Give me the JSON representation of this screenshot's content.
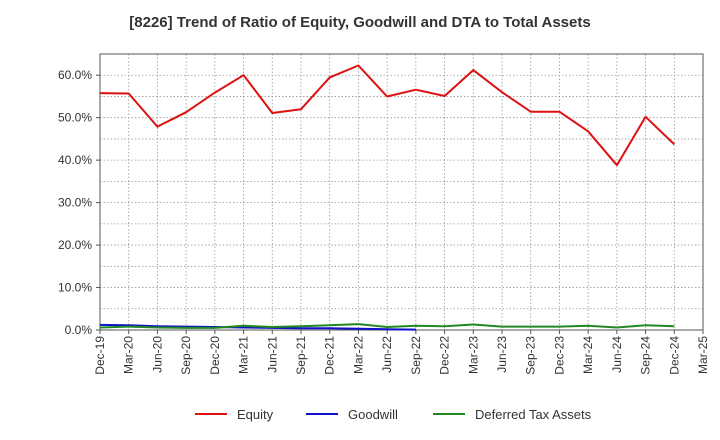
{
  "chart_data": {
    "type": "line",
    "title": "[8226]  Trend of Ratio of Equity, Goodwill and DTA to Total Assets",
    "xlabel": "",
    "ylabel": "",
    "ylim": [
      0,
      65
    ],
    "y_ticks": [
      0,
      10,
      20,
      30,
      40,
      50,
      60
    ],
    "y_tick_labels": [
      "0.0%",
      "10.0%",
      "20.0%",
      "30.0%",
      "40.0%",
      "50.0%",
      "60.0%"
    ],
    "x_tick_labels": [
      "Dec-19",
      "Mar-20",
      "Jun-20",
      "Sep-20",
      "Dec-20",
      "Mar-21",
      "Jun-21",
      "Sep-21",
      "Dec-21",
      "Mar-22",
      "Jun-22",
      "Sep-22",
      "Dec-22",
      "Mar-23",
      "Jun-23",
      "Sep-23",
      "Dec-23",
      "Mar-24",
      "Jun-24",
      "Sep-24",
      "Dec-24",
      "Mar-25"
    ],
    "grid": true,
    "legend_position": "bottom",
    "series": [
      {
        "name": "Equity",
        "color": "#dd1111",
        "values": [
          55.8,
          55.7,
          47.9,
          51.3,
          55.9,
          60.0,
          51.1,
          52.0,
          59.5,
          62.3,
          55.0,
          56.6,
          55.1,
          61.2,
          56.0,
          51.4,
          51.4,
          46.8,
          38.8,
          50.2,
          43.7
        ]
      },
      {
        "name": "Goodwill",
        "color": "#1111cc",
        "values": [
          1.2,
          1.1,
          0.9,
          0.8,
          0.7,
          0.6,
          0.5,
          0.4,
          0.4,
          0.3,
          0.2,
          0.1
        ]
      },
      {
        "name": "Deferred Tax Assets",
        "color": "#228822",
        "values": [
          0.6,
          0.8,
          0.6,
          0.5,
          0.5,
          1.0,
          0.7,
          0.9,
          1.1,
          1.4,
          0.7,
          1.0,
          0.9,
          1.3,
          0.8,
          0.8,
          0.8,
          1.0,
          0.6,
          1.1,
          0.9
        ]
      }
    ]
  }
}
